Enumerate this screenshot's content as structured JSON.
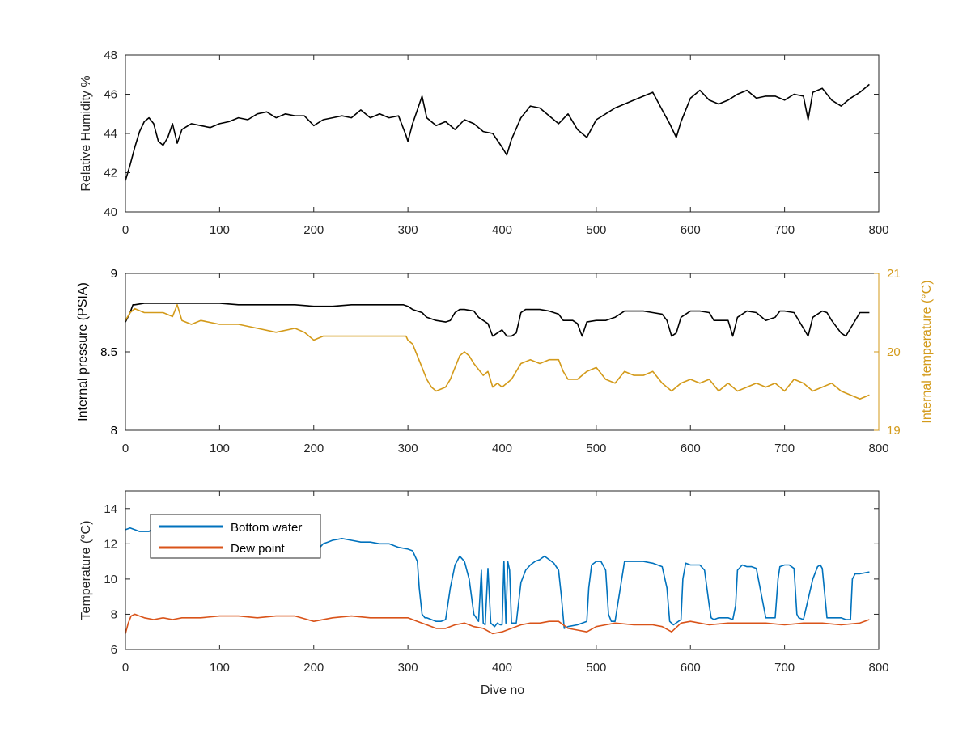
{
  "chart_data": [
    {
      "type": "line",
      "xlabel": "",
      "ylabel": "Relative Humidity %",
      "xlim": [
        0,
        800
      ],
      "ylim": [
        40,
        48
      ],
      "xticks": [
        0,
        100,
        200,
        300,
        400,
        500,
        600,
        700,
        800
      ],
      "yticks": [
        40,
        42,
        44,
        46,
        48
      ],
      "grid": false,
      "series": [
        {
          "color": "#000000",
          "x": [
            0,
            5,
            10,
            15,
            20,
            25,
            30,
            35,
            40,
            45,
            50,
            55,
            60,
            70,
            80,
            90,
            100,
            110,
            120,
            130,
            140,
            150,
            160,
            170,
            180,
            190,
            200,
            210,
            220,
            230,
            240,
            250,
            260,
            270,
            280,
            290,
            298,
            300,
            305,
            310,
            315,
            320,
            330,
            340,
            350,
            360,
            370,
            380,
            390,
            400,
            405,
            410,
            420,
            430,
            440,
            450,
            460,
            470,
            480,
            490,
            500,
            510,
            520,
            530,
            540,
            550,
            560,
            570,
            578,
            585,
            590,
            600,
            610,
            620,
            630,
            640,
            650,
            660,
            670,
            680,
            690,
            700,
            710,
            720,
            725,
            730,
            740,
            750,
            760,
            770,
            780,
            790
          ],
          "values": [
            41.6,
            42.4,
            43.3,
            44.1,
            44.6,
            44.8,
            44.5,
            43.6,
            43.4,
            43.8,
            44.5,
            43.5,
            44.2,
            44.5,
            44.4,
            44.3,
            44.5,
            44.6,
            44.8,
            44.7,
            45.0,
            45.1,
            44.8,
            45.0,
            44.9,
            44.9,
            44.4,
            44.7,
            44.8,
            44.9,
            44.8,
            45.2,
            44.8,
            45.0,
            44.8,
            44.9,
            43.9,
            43.6,
            44.5,
            45.2,
            45.9,
            44.8,
            44.4,
            44.6,
            44.2,
            44.7,
            44.5,
            44.1,
            44.0,
            43.3,
            42.9,
            43.7,
            44.8,
            45.4,
            45.3,
            44.9,
            44.5,
            45.0,
            44.2,
            43.8,
            44.7,
            45.0,
            45.3,
            45.5,
            45.7,
            45.9,
            46.1,
            45.2,
            44.5,
            43.8,
            44.6,
            45.8,
            46.2,
            45.7,
            45.5,
            45.7,
            46.0,
            46.2,
            45.8,
            45.9,
            45.9,
            45.7,
            46.0,
            45.9,
            44.7,
            46.1,
            46.3,
            45.7,
            45.4,
            45.8,
            46.1,
            46.5
          ]
        }
      ]
    },
    {
      "type": "line",
      "xlabel": "",
      "ylabel": "Internal pressure (PSIA)",
      "ylabel_right": "Internal temperature (°C)",
      "xlim": [
        0,
        800
      ],
      "ylim": [
        8,
        9
      ],
      "ylim_right": [
        19,
        21
      ],
      "xticks": [
        0,
        100,
        200,
        300,
        400,
        500,
        600,
        700,
        800
      ],
      "yticks": [
        8,
        8.5,
        9
      ],
      "yticks_right": [
        19,
        20,
        21
      ],
      "right_axis_color": "#d39a1a",
      "grid": false,
      "series": [
        {
          "axis": "left",
          "color": "#000000",
          "x": [
            0,
            5,
            8,
            10,
            20,
            40,
            60,
            80,
            100,
            120,
            140,
            160,
            180,
            200,
            220,
            240,
            260,
            280,
            295,
            300,
            305,
            310,
            315,
            320,
            330,
            340,
            345,
            350,
            355,
            360,
            370,
            375,
            380,
            385,
            390,
            395,
            400,
            405,
            410,
            415,
            420,
            425,
            430,
            440,
            450,
            460,
            465,
            470,
            475,
            480,
            485,
            490,
            500,
            510,
            520,
            530,
            540,
            550,
            560,
            570,
            575,
            580,
            585,
            590,
            600,
            610,
            620,
            625,
            630,
            640,
            645,
            650,
            660,
            670,
            680,
            690,
            695,
            700,
            710,
            715,
            720,
            725,
            730,
            740,
            745,
            750,
            760,
            765,
            770,
            780,
            790
          ],
          "values": [
            8.69,
            8.75,
            8.8,
            8.8,
            8.81,
            8.81,
            8.81,
            8.81,
            8.81,
            8.8,
            8.8,
            8.8,
            8.8,
            8.79,
            8.79,
            8.8,
            8.8,
            8.8,
            8.8,
            8.79,
            8.77,
            8.76,
            8.75,
            8.72,
            8.7,
            8.69,
            8.7,
            8.75,
            8.77,
            8.77,
            8.76,
            8.72,
            8.7,
            8.68,
            8.6,
            8.62,
            8.64,
            8.6,
            8.6,
            8.62,
            8.75,
            8.77,
            8.77,
            8.77,
            8.76,
            8.74,
            8.7,
            8.7,
            8.7,
            8.68,
            8.6,
            8.69,
            8.7,
            8.7,
            8.72,
            8.76,
            8.76,
            8.76,
            8.75,
            8.74,
            8.7,
            8.6,
            8.62,
            8.72,
            8.76,
            8.76,
            8.75,
            8.7,
            8.7,
            8.7,
            8.6,
            8.72,
            8.76,
            8.75,
            8.7,
            8.72,
            8.76,
            8.76,
            8.75,
            8.7,
            8.65,
            8.6,
            8.72,
            8.76,
            8.75,
            8.7,
            8.62,
            8.6,
            8.65,
            8.75,
            8.75
          ]
        },
        {
          "axis": "right",
          "color": "#d39a1a",
          "x": [
            0,
            5,
            10,
            20,
            30,
            40,
            50,
            55,
            60,
            70,
            80,
            100,
            120,
            140,
            160,
            180,
            190,
            200,
            210,
            230,
            250,
            270,
            290,
            298,
            300,
            305,
            310,
            315,
            320,
            325,
            330,
            340,
            345,
            350,
            355,
            360,
            365,
            370,
            380,
            385,
            390,
            395,
            400,
            410,
            420,
            430,
            440,
            450,
            460,
            465,
            470,
            480,
            490,
            500,
            510,
            520,
            530,
            540,
            550,
            560,
            570,
            580,
            590,
            600,
            610,
            620,
            630,
            640,
            650,
            660,
            670,
            680,
            690,
            700,
            710,
            720,
            730,
            740,
            750,
            760,
            770,
            780,
            790
          ],
          "values": [
            20.4,
            20.5,
            20.55,
            20.5,
            20.5,
            20.5,
            20.45,
            20.6,
            20.4,
            20.35,
            20.4,
            20.35,
            20.35,
            20.3,
            20.25,
            20.3,
            20.25,
            20.15,
            20.2,
            20.2,
            20.2,
            20.2,
            20.2,
            20.2,
            20.15,
            20.1,
            19.95,
            19.8,
            19.65,
            19.55,
            19.5,
            19.55,
            19.65,
            19.8,
            19.95,
            20.0,
            19.95,
            19.85,
            19.7,
            19.75,
            19.55,
            19.6,
            19.55,
            19.65,
            19.85,
            19.9,
            19.85,
            19.9,
            19.9,
            19.75,
            19.65,
            19.65,
            19.75,
            19.8,
            19.65,
            19.6,
            19.75,
            19.7,
            19.7,
            19.75,
            19.6,
            19.5,
            19.6,
            19.65,
            19.6,
            19.65,
            19.5,
            19.6,
            19.5,
            19.55,
            19.6,
            19.55,
            19.6,
            19.5,
            19.65,
            19.6,
            19.5,
            19.55,
            19.6,
            19.5,
            19.45,
            19.4,
            19.45
          ]
        }
      ]
    },
    {
      "type": "line",
      "xlabel": "Dive no",
      "ylabel": "Temperature (°C)",
      "xlim": [
        0,
        800
      ],
      "ylim": [
        6,
        15
      ],
      "xticks": [
        0,
        100,
        200,
        300,
        400,
        500,
        600,
        700,
        800
      ],
      "yticks": [
        6,
        8,
        10,
        12,
        14
      ],
      "grid": false,
      "legend_position": "top-left",
      "series": [
        {
          "name": "Bottom water",
          "color": "#0072bd",
          "x": [
            0,
            5,
            10,
            15,
            20,
            25,
            30,
            40,
            50,
            100,
            150,
            195,
            200,
            205,
            210,
            215,
            220,
            230,
            240,
            250,
            260,
            270,
            280,
            290,
            300,
            305,
            310,
            312,
            315,
            318,
            320,
            325,
            330,
            335,
            340,
            345,
            350,
            355,
            360,
            365,
            370,
            375,
            378,
            380,
            382,
            385,
            388,
            390,
            392,
            395,
            398,
            400,
            402,
            404,
            406,
            408,
            410,
            415,
            420,
            425,
            430,
            435,
            440,
            445,
            450,
            455,
            460,
            463,
            466,
            470,
            480,
            490,
            492,
            495,
            500,
            505,
            510,
            513,
            516,
            520,
            530,
            540,
            550,
            560,
            570,
            575,
            578,
            582,
            590,
            592,
            595,
            600,
            610,
            615,
            620,
            622,
            625,
            630,
            640,
            645,
            648,
            650,
            655,
            660,
            665,
            670,
            680,
            690,
            693,
            695,
            700,
            705,
            710,
            713,
            715,
            720,
            730,
            735,
            738,
            740,
            745,
            750,
            760,
            765,
            770,
            772,
            775,
            780,
            790
          ],
          "values": [
            12.8,
            12.9,
            12.8,
            12.7,
            12.7,
            12.7,
            12.9,
            12.9,
            12.9,
            12.9,
            12.9,
            12.9,
            11.5,
            11.7,
            12.0,
            12.1,
            12.2,
            12.3,
            12.2,
            12.1,
            12.1,
            12.0,
            12.0,
            11.8,
            11.7,
            11.6,
            11.0,
            9.5,
            8.0,
            7.8,
            7.8,
            7.7,
            7.6,
            7.6,
            7.7,
            9.5,
            10.8,
            11.3,
            11.0,
            10.0,
            8.0,
            7.6,
            10.5,
            7.5,
            7.4,
            10.6,
            7.5,
            7.4,
            7.3,
            7.5,
            7.4,
            7.4,
            11.0,
            7.5,
            11.0,
            10.5,
            7.5,
            7.5,
            9.8,
            10.5,
            10.8,
            11.0,
            11.1,
            11.3,
            11.1,
            10.9,
            10.5,
            9.0,
            7.2,
            7.3,
            7.4,
            7.6,
            9.5,
            10.8,
            11.0,
            11.0,
            10.5,
            8.0,
            7.6,
            7.6,
            11.0,
            11.0,
            11.0,
            10.9,
            10.7,
            9.5,
            7.6,
            7.4,
            7.7,
            10.0,
            10.9,
            10.8,
            10.8,
            10.5,
            8.5,
            7.8,
            7.7,
            7.8,
            7.8,
            7.7,
            8.5,
            10.5,
            10.8,
            10.7,
            10.7,
            10.6,
            7.8,
            7.8,
            10.0,
            10.7,
            10.8,
            10.8,
            10.6,
            8.0,
            7.8,
            7.7,
            10.0,
            10.7,
            10.8,
            10.6,
            7.8,
            7.8,
            7.8,
            7.7,
            7.7,
            10.0,
            10.3,
            10.3,
            10.4
          ]
        },
        {
          "name": "Dew point",
          "color": "#d95319",
          "x": [
            0,
            3,
            6,
            10,
            15,
            20,
            30,
            40,
            50,
            60,
            80,
            100,
            120,
            140,
            160,
            180,
            200,
            220,
            240,
            260,
            280,
            300,
            310,
            320,
            330,
            340,
            350,
            360,
            370,
            380,
            390,
            400,
            410,
            420,
            430,
            440,
            450,
            460,
            470,
            480,
            490,
            500,
            510,
            520,
            540,
            560,
            570,
            580,
            590,
            600,
            620,
            640,
            660,
            680,
            700,
            720,
            740,
            760,
            780,
            790
          ],
          "values": [
            6.9,
            7.5,
            7.9,
            8.0,
            7.9,
            7.8,
            7.7,
            7.8,
            7.7,
            7.8,
            7.8,
            7.9,
            7.9,
            7.8,
            7.9,
            7.9,
            7.6,
            7.8,
            7.9,
            7.8,
            7.8,
            7.8,
            7.6,
            7.4,
            7.2,
            7.2,
            7.4,
            7.5,
            7.3,
            7.2,
            6.9,
            7.0,
            7.2,
            7.4,
            7.5,
            7.5,
            7.6,
            7.6,
            7.2,
            7.1,
            7.0,
            7.3,
            7.4,
            7.5,
            7.4,
            7.4,
            7.3,
            7.0,
            7.5,
            7.6,
            7.4,
            7.5,
            7.5,
            7.5,
            7.4,
            7.5,
            7.5,
            7.4,
            7.5,
            7.7
          ]
        }
      ]
    }
  ]
}
